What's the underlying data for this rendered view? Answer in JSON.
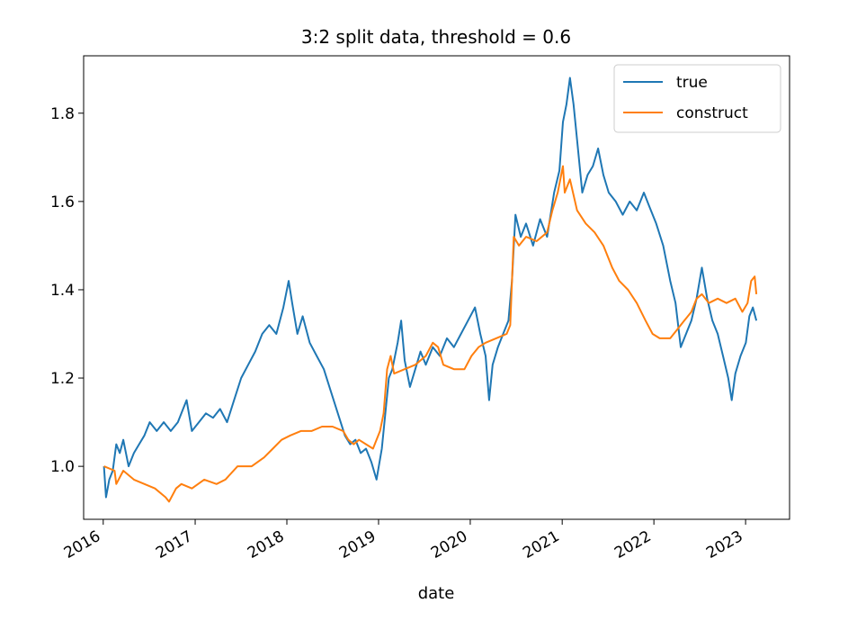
{
  "chart_data": {
    "type": "line",
    "title": "3:2 split data, threshold = 0.6",
    "xlabel": "date",
    "ylabel": "",
    "xlim": [
      "2015-10-15",
      "2023-06-25"
    ],
    "ylim": [
      0.88,
      1.93
    ],
    "x_ticks": [
      "2016",
      "2017",
      "2018",
      "2019",
      "2020",
      "2021",
      "2022",
      "2023"
    ],
    "y_ticks": [
      "1.0",
      "1.2",
      "1.4",
      "1.6",
      "1.8"
    ],
    "legend_position": "top-right",
    "grid": false,
    "series": [
      {
        "name": "true",
        "color": "#1f77b4",
        "points": [
          [
            "2016-01-04",
            1.0
          ],
          [
            "2016-01-12",
            0.93
          ],
          [
            "2016-01-25",
            0.97
          ],
          [
            "2016-02-08",
            0.99
          ],
          [
            "2016-02-22",
            1.05
          ],
          [
            "2016-03-07",
            1.03
          ],
          [
            "2016-03-21",
            1.06
          ],
          [
            "2016-04-11",
            1.0
          ],
          [
            "2016-05-02",
            1.03
          ],
          [
            "2016-05-23",
            1.05
          ],
          [
            "2016-06-13",
            1.07
          ],
          [
            "2016-07-04",
            1.1
          ],
          [
            "2016-08-01",
            1.08
          ],
          [
            "2016-08-29",
            1.1
          ],
          [
            "2016-09-26",
            1.08
          ],
          [
            "2016-10-24",
            1.1
          ],
          [
            "2016-11-14",
            1.13
          ],
          [
            "2016-11-28",
            1.15
          ],
          [
            "2016-12-19",
            1.08
          ],
          [
            "2017-01-16",
            1.1
          ],
          [
            "2017-02-13",
            1.12
          ],
          [
            "2017-03-13",
            1.11
          ],
          [
            "2017-04-10",
            1.13
          ],
          [
            "2017-05-08",
            1.1
          ],
          [
            "2017-06-05",
            1.15
          ],
          [
            "2017-07-03",
            1.2
          ],
          [
            "2017-07-31",
            1.23
          ],
          [
            "2017-08-28",
            1.26
          ],
          [
            "2017-09-25",
            1.3
          ],
          [
            "2017-10-23",
            1.32
          ],
          [
            "2017-11-20",
            1.3
          ],
          [
            "2017-12-18",
            1.36
          ],
          [
            "2018-01-08",
            1.42
          ],
          [
            "2018-01-22",
            1.37
          ],
          [
            "2018-02-12",
            1.3
          ],
          [
            "2018-03-05",
            1.34
          ],
          [
            "2018-04-02",
            1.28
          ],
          [
            "2018-04-30",
            1.25
          ],
          [
            "2018-05-28",
            1.22
          ],
          [
            "2018-06-25",
            1.17
          ],
          [
            "2018-07-23",
            1.12
          ],
          [
            "2018-08-20",
            1.07
          ],
          [
            "2018-09-10",
            1.05
          ],
          [
            "2018-10-01",
            1.06
          ],
          [
            "2018-10-22",
            1.03
          ],
          [
            "2018-11-12",
            1.04
          ],
          [
            "2018-12-03",
            1.01
          ],
          [
            "2018-12-24",
            0.97
          ],
          [
            "2019-01-14",
            1.04
          ],
          [
            "2019-01-28",
            1.12
          ],
          [
            "2019-02-11",
            1.2
          ],
          [
            "2019-02-25",
            1.22
          ],
          [
            "2019-03-18",
            1.28
          ],
          [
            "2019-04-01",
            1.33
          ],
          [
            "2019-04-15",
            1.24
          ],
          [
            "2019-05-06",
            1.18
          ],
          [
            "2019-05-27",
            1.22
          ],
          [
            "2019-06-17",
            1.26
          ],
          [
            "2019-07-08",
            1.23
          ],
          [
            "2019-08-05",
            1.27
          ],
          [
            "2019-09-02",
            1.25
          ],
          [
            "2019-09-30",
            1.29
          ],
          [
            "2019-10-28",
            1.27
          ],
          [
            "2019-11-25",
            1.3
          ],
          [
            "2019-12-23",
            1.33
          ],
          [
            "2020-01-20",
            1.36
          ],
          [
            "2020-02-10",
            1.3
          ],
          [
            "2020-03-02",
            1.25
          ],
          [
            "2020-03-16",
            1.15
          ],
          [
            "2020-03-30",
            1.23
          ],
          [
            "2020-04-20",
            1.27
          ],
          [
            "2020-05-11",
            1.3
          ],
          [
            "2020-06-01",
            1.33
          ],
          [
            "2020-06-15",
            1.42
          ],
          [
            "2020-06-29",
            1.57
          ],
          [
            "2020-07-20",
            1.52
          ],
          [
            "2020-08-10",
            1.55
          ],
          [
            "2020-09-07",
            1.5
          ],
          [
            "2020-10-05",
            1.56
          ],
          [
            "2020-11-02",
            1.52
          ],
          [
            "2020-11-30",
            1.62
          ],
          [
            "2020-12-21",
            1.67
          ],
          [
            "2021-01-04",
            1.78
          ],
          [
            "2021-01-18",
            1.82
          ],
          [
            "2021-02-01",
            1.88
          ],
          [
            "2021-02-15",
            1.82
          ],
          [
            "2021-03-01",
            1.74
          ],
          [
            "2021-03-22",
            1.62
          ],
          [
            "2021-04-12",
            1.66
          ],
          [
            "2021-05-03",
            1.68
          ],
          [
            "2021-05-24",
            1.72
          ],
          [
            "2021-06-14",
            1.66
          ],
          [
            "2021-07-05",
            1.62
          ],
          [
            "2021-08-02",
            1.6
          ],
          [
            "2021-08-30",
            1.57
          ],
          [
            "2021-09-27",
            1.6
          ],
          [
            "2021-10-25",
            1.58
          ],
          [
            "2021-11-22",
            1.62
          ],
          [
            "2021-12-13",
            1.59
          ],
          [
            "2022-01-10",
            1.55
          ],
          [
            "2022-02-07",
            1.5
          ],
          [
            "2022-03-07",
            1.42
          ],
          [
            "2022-03-28",
            1.37
          ],
          [
            "2022-04-18",
            1.27
          ],
          [
            "2022-05-09",
            1.3
          ],
          [
            "2022-05-30",
            1.33
          ],
          [
            "2022-06-20",
            1.38
          ],
          [
            "2022-07-11",
            1.45
          ],
          [
            "2022-08-01",
            1.38
          ],
          [
            "2022-08-22",
            1.33
          ],
          [
            "2022-09-12",
            1.3
          ],
          [
            "2022-10-03",
            1.25
          ],
          [
            "2022-10-24",
            1.2
          ],
          [
            "2022-11-07",
            1.15
          ],
          [
            "2022-11-21",
            1.21
          ],
          [
            "2022-12-12",
            1.25
          ],
          [
            "2023-01-02",
            1.28
          ],
          [
            "2023-01-16",
            1.34
          ],
          [
            "2023-01-30",
            1.36
          ],
          [
            "2023-02-13",
            1.33
          ]
        ]
      },
      {
        "name": "construct",
        "color": "#ff7f0e",
        "points": [
          [
            "2016-01-04",
            1.0
          ],
          [
            "2016-02-15",
            0.99
          ],
          [
            "2016-02-22",
            0.96
          ],
          [
            "2016-03-21",
            0.99
          ],
          [
            "2016-05-02",
            0.97
          ],
          [
            "2016-06-13",
            0.96
          ],
          [
            "2016-07-25",
            0.95
          ],
          [
            "2016-09-05",
            0.93
          ],
          [
            "2016-09-19",
            0.92
          ],
          [
            "2016-10-17",
            0.95
          ],
          [
            "2016-11-07",
            0.96
          ],
          [
            "2016-12-19",
            0.95
          ],
          [
            "2017-02-06",
            0.97
          ],
          [
            "2017-03-27",
            0.96
          ],
          [
            "2017-05-01",
            0.97
          ],
          [
            "2017-06-19",
            1.0
          ],
          [
            "2017-08-14",
            1.0
          ],
          [
            "2017-10-02",
            1.02
          ],
          [
            "2017-11-06",
            1.04
          ],
          [
            "2017-12-11",
            1.06
          ],
          [
            "2018-01-15",
            1.07
          ],
          [
            "2018-02-26",
            1.08
          ],
          [
            "2018-04-09",
            1.08
          ],
          [
            "2018-05-21",
            1.09
          ],
          [
            "2018-07-02",
            1.09
          ],
          [
            "2018-08-13",
            1.08
          ],
          [
            "2018-09-03",
            1.06
          ],
          [
            "2018-09-24",
            1.05
          ],
          [
            "2018-10-15",
            1.06
          ],
          [
            "2018-11-12",
            1.05
          ],
          [
            "2018-12-10",
            1.04
          ],
          [
            "2019-01-07",
            1.08
          ],
          [
            "2019-01-21",
            1.12
          ],
          [
            "2019-02-04",
            1.22
          ],
          [
            "2019-02-18",
            1.25
          ],
          [
            "2019-03-04",
            1.21
          ],
          [
            "2019-04-15",
            1.22
          ],
          [
            "2019-05-27",
            1.23
          ],
          [
            "2019-07-08",
            1.25
          ],
          [
            "2019-08-05",
            1.28
          ],
          [
            "2019-08-26",
            1.27
          ],
          [
            "2019-09-16",
            1.23
          ],
          [
            "2019-10-28",
            1.22
          ],
          [
            "2019-12-09",
            1.22
          ],
          [
            "2020-01-06",
            1.25
          ],
          [
            "2020-02-03",
            1.27
          ],
          [
            "2020-03-02",
            1.28
          ],
          [
            "2020-04-13",
            1.29
          ],
          [
            "2020-05-25",
            1.3
          ],
          [
            "2020-06-08",
            1.32
          ],
          [
            "2020-06-22",
            1.52
          ],
          [
            "2020-07-13",
            1.5
          ],
          [
            "2020-08-10",
            1.52
          ],
          [
            "2020-09-21",
            1.51
          ],
          [
            "2020-11-02",
            1.53
          ],
          [
            "2020-11-23",
            1.58
          ],
          [
            "2020-12-14",
            1.62
          ],
          [
            "2021-01-04",
            1.68
          ],
          [
            "2021-01-11",
            1.62
          ],
          [
            "2021-02-01",
            1.65
          ],
          [
            "2021-03-01",
            1.58
          ],
          [
            "2021-04-05",
            1.55
          ],
          [
            "2021-05-10",
            1.53
          ],
          [
            "2021-06-14",
            1.5
          ],
          [
            "2021-07-19",
            1.45
          ],
          [
            "2021-08-16",
            1.42
          ],
          [
            "2021-09-20",
            1.4
          ],
          [
            "2021-10-25",
            1.37
          ],
          [
            "2021-11-29",
            1.33
          ],
          [
            "2021-12-27",
            1.3
          ],
          [
            "2022-01-24",
            1.29
          ],
          [
            "2022-03-07",
            1.29
          ],
          [
            "2022-04-04",
            1.31
          ],
          [
            "2022-05-02",
            1.33
          ],
          [
            "2022-05-30",
            1.35
          ],
          [
            "2022-06-20",
            1.38
          ],
          [
            "2022-07-11",
            1.39
          ],
          [
            "2022-08-08",
            1.37
          ],
          [
            "2022-09-12",
            1.38
          ],
          [
            "2022-10-17",
            1.37
          ],
          [
            "2022-11-21",
            1.38
          ],
          [
            "2022-12-19",
            1.35
          ],
          [
            "2023-01-09",
            1.37
          ],
          [
            "2023-01-23",
            1.42
          ],
          [
            "2023-02-06",
            1.43
          ],
          [
            "2023-02-13",
            1.39
          ]
        ]
      }
    ]
  }
}
